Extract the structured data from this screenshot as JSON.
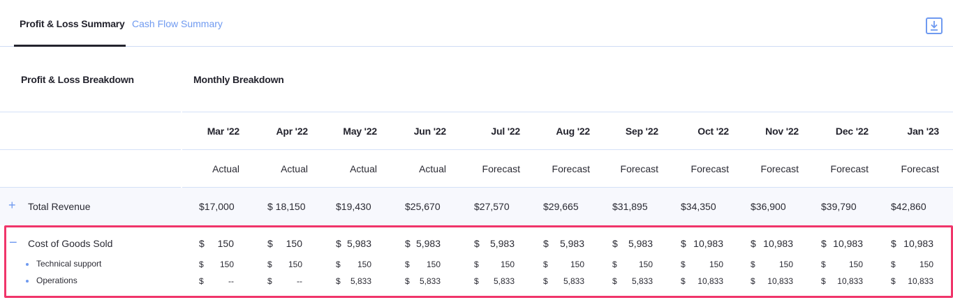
{
  "tabs": [
    {
      "label": "Profit & Loss Summary",
      "active": true
    },
    {
      "label": "Cash Flow Summary",
      "active": false
    }
  ],
  "toolbar": {
    "download_icon": "download-icon"
  },
  "sections": {
    "left_title": "Profit & Loss Breakdown",
    "right_title": "Monthly Breakdown"
  },
  "columns": [
    {
      "month": "Mar '22",
      "status": "Actual"
    },
    {
      "month": "Apr '22",
      "status": "Actual"
    },
    {
      "month": "May '22",
      "status": "Actual"
    },
    {
      "month": "Jun '22",
      "status": "Actual"
    },
    {
      "month": "Jul '22",
      "status": "Forecast"
    },
    {
      "month": "Aug '22",
      "status": "Forecast"
    },
    {
      "month": "Sep '22",
      "status": "Forecast"
    },
    {
      "month": "Oct '22",
      "status": "Forecast"
    },
    {
      "month": "Nov '22",
      "status": "Forecast"
    },
    {
      "month": "Dec '22",
      "status": "Forecast"
    },
    {
      "month": "Jan '23",
      "status": "Forecast"
    }
  ],
  "rows": {
    "total_revenue": {
      "label": "Total Revenue",
      "toggle": "+",
      "values": [
        "$17,000",
        "$ 18,150",
        "$19,430",
        "$25,670",
        "$27,570",
        "$29,665",
        "$31,895",
        "$34,350",
        "$36,900",
        "$39,790",
        "$42,860"
      ]
    },
    "cogs": {
      "label": "Cost of Goods Sold",
      "toggle": "−",
      "currency": "$",
      "values": [
        "150",
        "150",
        "5,983",
        "5,983",
        "5,983",
        "5,983",
        "5,983",
        "10,983",
        "10,983",
        "10,983",
        "10,983"
      ],
      "children": [
        {
          "label": "Technical support",
          "currency": "$",
          "values": [
            "150",
            "150",
            "150",
            "150",
            "150",
            "150",
            "150",
            "150",
            "150",
            "150",
            "150"
          ]
        },
        {
          "label": "Operations",
          "currency": "$",
          "values": [
            "--",
            "--",
            "5,833",
            "5,833",
            "5,833",
            "5,833",
            "5,833",
            "10,833",
            "10,833",
            "10,833",
            "10,833"
          ]
        }
      ]
    }
  },
  "colors": {
    "accent": "#6f9af0",
    "highlight_border": "#f0356a",
    "text": "#23232d",
    "row_bg": "#f7f8fd"
  }
}
